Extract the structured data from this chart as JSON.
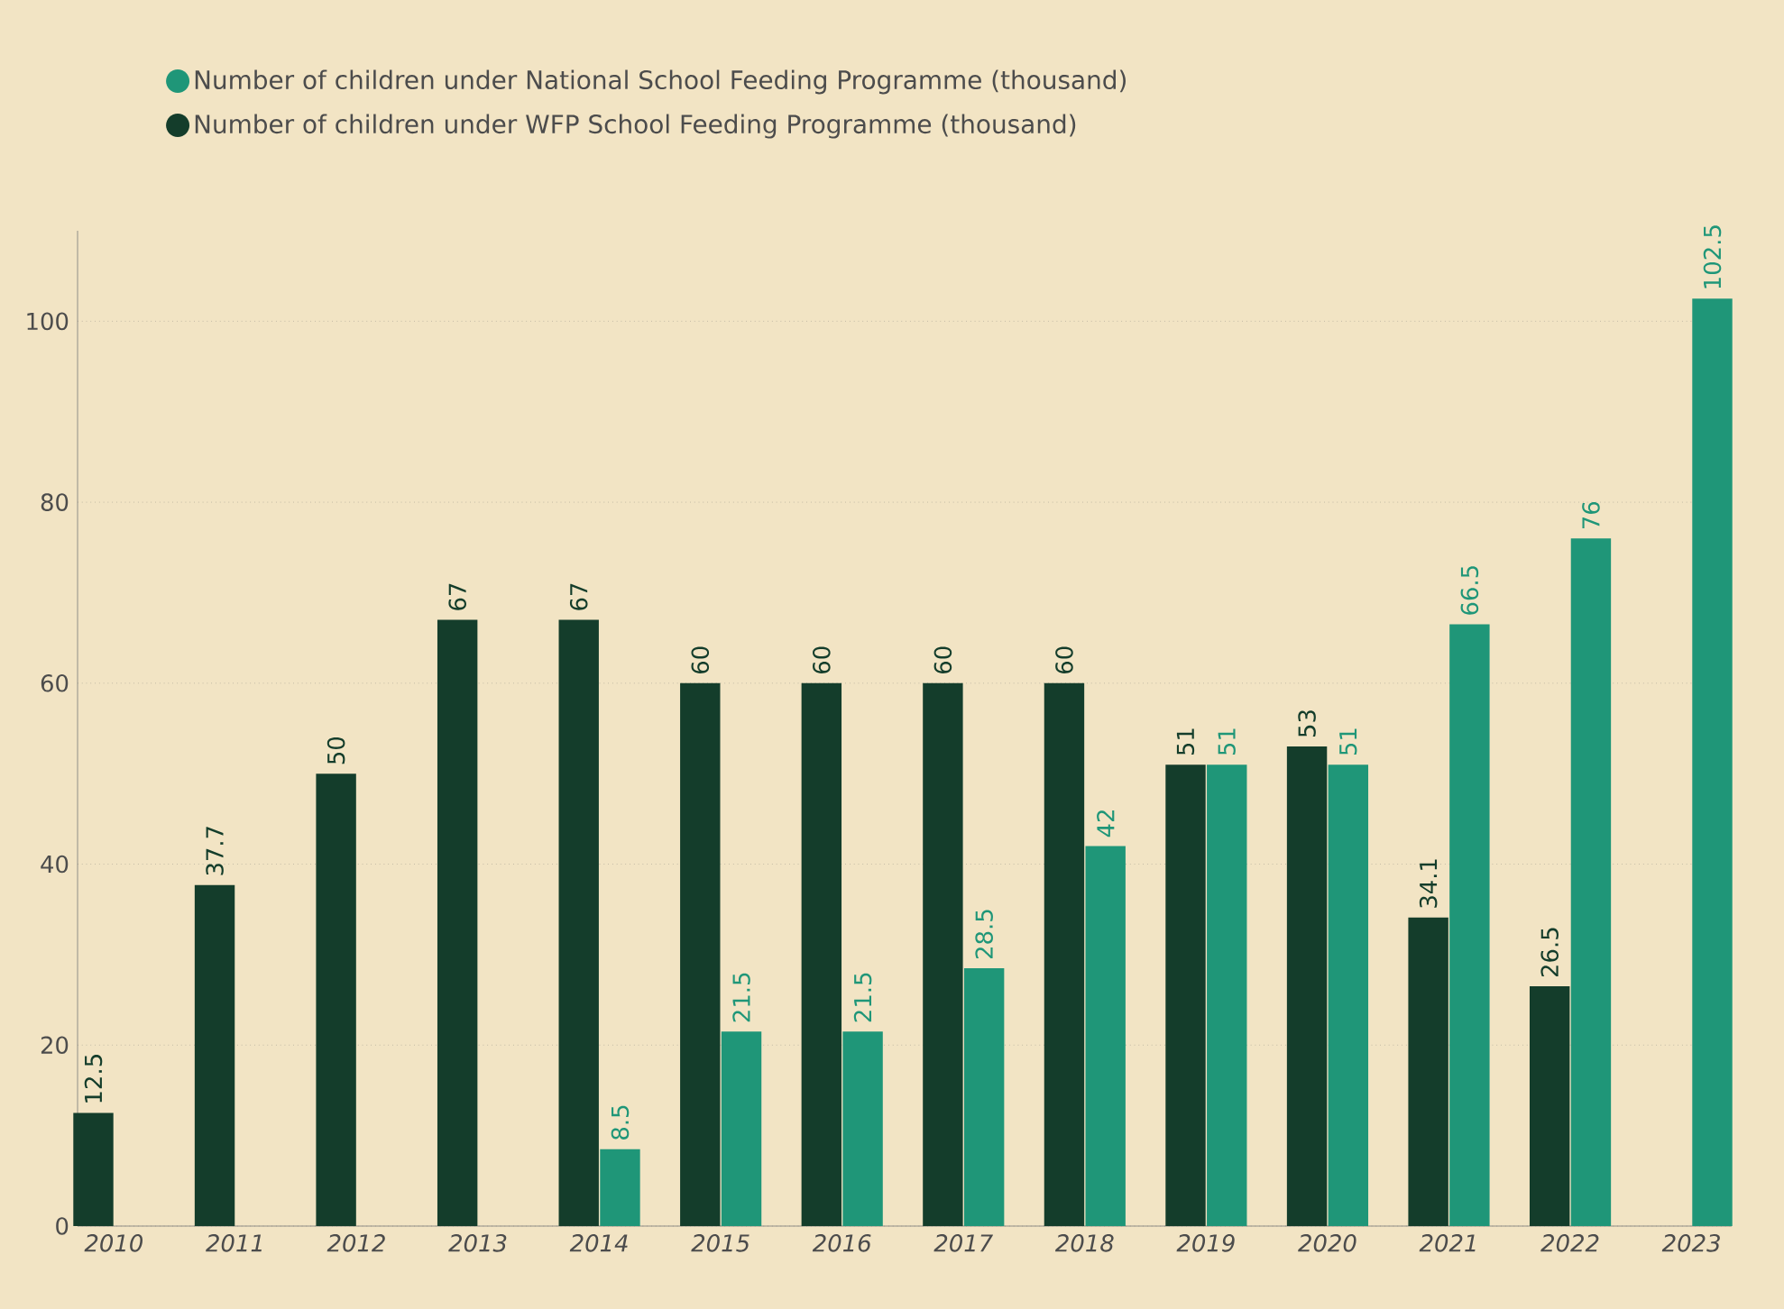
{
  "chart_data": {
    "type": "bar",
    "categories": [
      "2010",
      "2011",
      "2012",
      "2013",
      "2014",
      "2015",
      "2016",
      "2017",
      "2018",
      "2019",
      "2020",
      "2021",
      "2022",
      "2023"
    ],
    "series": [
      {
        "name": "Number of children under National School Feeding Programme (thousand)",
        "color": "#1f9678",
        "values": [
          null,
          null,
          null,
          null,
          8.5,
          21.5,
          21.5,
          28.5,
          42,
          51,
          51,
          66.5,
          76,
          102.5
        ]
      },
      {
        "name": "Number of children under WFP School Feeding Programme (thousand)",
        "color": "#143d2b",
        "values": [
          12.5,
          37.7,
          50,
          67,
          67,
          60,
          60,
          60,
          60,
          51,
          53,
          34.1,
          26.5,
          null
        ]
      }
    ],
    "ylim": [
      0,
      110
    ],
    "yticks": [
      0,
      20,
      40,
      60,
      80,
      100
    ],
    "grid": "y",
    "legend": "top",
    "data_labels": true
  }
}
